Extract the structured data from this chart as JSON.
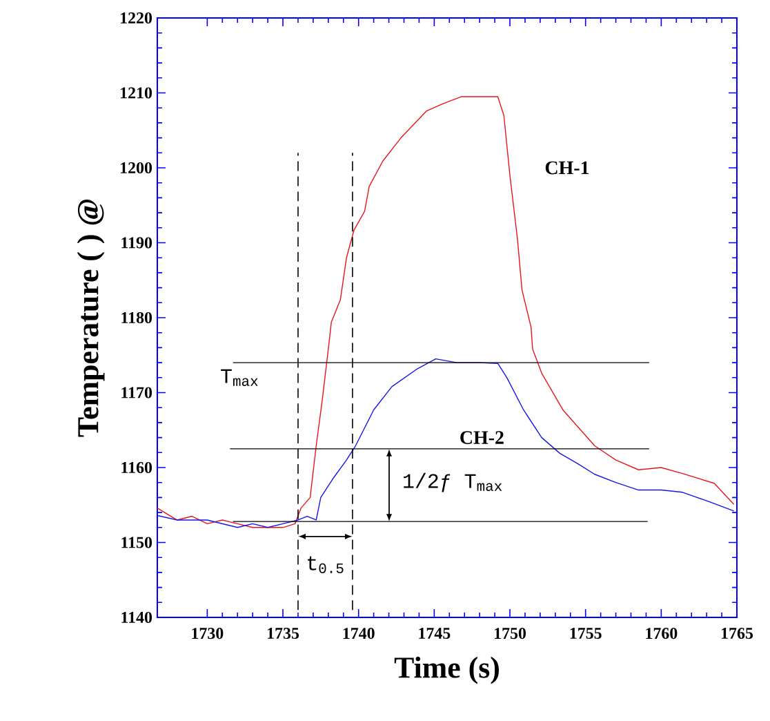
{
  "chart_data": {
    "type": "line",
    "xlabel": "Time (s)",
    "ylabel": "Temperature ( ) @",
    "xlim": [
      1726.7,
      1765
    ],
    "ylim": [
      1140,
      1220
    ],
    "xticks": [
      1730,
      1735,
      1740,
      1745,
      1750,
      1755,
      1760,
      1765
    ],
    "yticks": [
      1140,
      1150,
      1160,
      1170,
      1180,
      1190,
      1200,
      1210,
      1220
    ],
    "grid": false,
    "marker": "none",
    "line_style": "solid",
    "series": [
      {
        "color": "#e8141c",
        "x": [
          1726.7,
          1728,
          1729,
          1730,
          1731,
          1732,
          1733,
          1734,
          1735,
          1735.8,
          1736.2,
          1736.8,
          1737.2,
          1737.6,
          1738.0,
          1738.2,
          1738.8,
          1739.2,
          1739.7,
          1740.4,
          1740.7,
          1741.6,
          1742.8,
          1744.5,
          1745.5,
          1746.8,
          1748,
          1749.2,
          1749.6,
          1750,
          1750.5,
          1750.8,
          1751.4,
          1751.5,
          1752.1,
          1753.5,
          1755.6,
          1757,
          1758.5,
          1760,
          1761.4,
          1763.5,
          1764.8
        ],
        "values": [
          1154.6,
          1153,
          1153.5,
          1152.5,
          1153,
          1152.5,
          1152,
          1152,
          1152,
          1152.5,
          1154.6,
          1156,
          1162.9,
          1169,
          1175.8,
          1179.4,
          1182.4,
          1188,
          1191.7,
          1194.2,
          1197.5,
          1200.9,
          1204,
          1207.6,
          1208.5,
          1209.5,
          1209.5,
          1209.5,
          1207,
          1199,
          1190.5,
          1183.7,
          1178.7,
          1175.8,
          1172.6,
          1167.7,
          1162.9,
          1161,
          1159.7,
          1160,
          1159.2,
          1157.9,
          1155.1
        ]
      },
      {
        "color": "#1414e8",
        "x": [
          1726.7,
          1728,
          1729,
          1730,
          1731,
          1732,
          1733,
          1734,
          1735,
          1736,
          1736.6,
          1737.2,
          1737.5,
          1738.3,
          1739.2,
          1739.8,
          1741,
          1742.2,
          1743.9,
          1745.1,
          1746.5,
          1748,
          1749.2,
          1749.8,
          1750.9,
          1752.1,
          1753.3,
          1754.5,
          1755.6,
          1757,
          1758.5,
          1760,
          1761.4,
          1763.1,
          1764.8
        ],
        "values": [
          1153.6,
          1153,
          1153,
          1153,
          1152.5,
          1152,
          1152.5,
          1152,
          1152.5,
          1153,
          1153.5,
          1153,
          1156,
          1158.5,
          1161,
          1162.9,
          1167.7,
          1170.8,
          1173.2,
          1174.5,
          1174,
          1174,
          1173.9,
          1172,
          1167.7,
          1164,
          1161.9,
          1160.5,
          1159.1,
          1158,
          1157,
          1157,
          1156.7,
          1155.5,
          1154.2
        ]
      },
      {
        "color": "#000000",
        "x": [
          1731.7,
          1759.2
        ],
        "values": [
          1174,
          1174
        ]
      },
      {
        "color": "#000000",
        "x": [
          1731.5,
          1759.2
        ],
        "values": [
          1162.5,
          1162.5
        ]
      },
      {
        "color": "#000000",
        "x": [
          1731.7,
          1759.1
        ],
        "values": [
          1152.8,
          1152.8
        ]
      }
    ],
    "ref_lines": [
      {
        "axis": "x",
        "value": 1736.0,
        "color": "#000000",
        "line_style": "dashed"
      },
      {
        "axis": "x",
        "value": 1739.6,
        "color": "#000000",
        "line_style": "dashed"
      }
    ],
    "annotations": [
      "CH-1",
      "CH-2",
      "T$_{max}$",
      "1/2ƒ T$_{max}$",
      "t$_{0.5}$"
    ]
  }
}
